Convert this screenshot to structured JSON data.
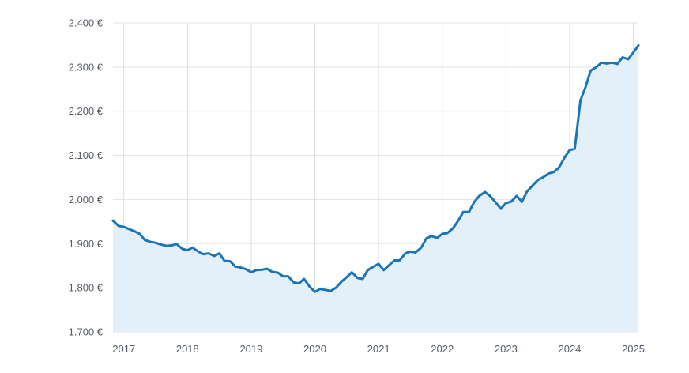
{
  "chart_data": {
    "type": "area",
    "title": "",
    "xlabel": "",
    "ylabel": "",
    "ylim": [
      1700,
      2400
    ],
    "xlim": [
      2016.83,
      2025.08
    ],
    "y_ticks": [
      {
        "value": 1700,
        "label": "1.700 €"
      },
      {
        "value": 1800,
        "label": "1.800 €"
      },
      {
        "value": 1900,
        "label": "1.900 €"
      },
      {
        "value": 2000,
        "label": "2.000 €"
      },
      {
        "value": 2100,
        "label": "2.100 €"
      },
      {
        "value": 2200,
        "label": "2.200 €"
      },
      {
        "value": 2300,
        "label": "2.300 €"
      },
      {
        "value": 2400,
        "label": "2.400 €"
      }
    ],
    "x_ticks": [
      {
        "value": 2017,
        "label": "2017"
      },
      {
        "value": 2018,
        "label": "2018"
      },
      {
        "value": 2019,
        "label": "2019"
      },
      {
        "value": 2020,
        "label": "2020"
      },
      {
        "value": 2021,
        "label": "2021"
      },
      {
        "value": 2022,
        "label": "2022"
      },
      {
        "value": 2023,
        "label": "2023"
      },
      {
        "value": 2024,
        "label": "2024"
      },
      {
        "value": 2025,
        "label": "2025"
      }
    ],
    "grid": true,
    "colors": {
      "line": "#1a74b8",
      "fill": "#e4f0f9",
      "grid": "#e3e3e3",
      "vgrid": "#dadde2",
      "text": "#555b66"
    },
    "series": [
      {
        "x": [
          2016.83,
          2016.92,
          2017.0,
          2017.08,
          2017.17,
          2017.25,
          2017.33,
          2017.42,
          2017.5,
          2017.58,
          2017.67,
          2017.75,
          2017.83,
          2017.92,
          2018.0,
          2018.08,
          2018.17,
          2018.25,
          2018.33,
          2018.42,
          2018.5,
          2018.58,
          2018.67,
          2018.75,
          2018.83,
          2018.92,
          2019.0,
          2019.08,
          2019.17,
          2019.25,
          2019.33,
          2019.42,
          2019.5,
          2019.58,
          2019.67,
          2019.75,
          2019.83,
          2019.92,
          2020.0,
          2020.08,
          2020.17,
          2020.25,
          2020.33,
          2020.42,
          2020.5,
          2020.58,
          2020.67,
          2020.75,
          2020.83,
          2020.92,
          2021.0,
          2021.08,
          2021.17,
          2021.25,
          2021.33,
          2021.42,
          2021.5,
          2021.58,
          2021.67,
          2021.75,
          2021.83,
          2021.92,
          2022.0,
          2022.08,
          2022.17,
          2022.25,
          2022.33,
          2022.42,
          2022.5,
          2022.58,
          2022.67,
          2022.75,
          2022.83,
          2022.92,
          2023.0,
          2023.08,
          2023.17,
          2023.25,
          2023.33,
          2023.42,
          2023.5,
          2023.58,
          2023.67,
          2023.75,
          2023.83,
          2023.92,
          2024.0,
          2024.08,
          2024.17,
          2024.25,
          2024.33,
          2024.42,
          2024.5,
          2024.58,
          2024.67,
          2024.75,
          2024.83,
          2024.92,
          2025.0,
          2025.08
        ],
        "values": [
          1952,
          1940,
          1938,
          1933,
          1928,
          1922,
          1908,
          1904,
          1902,
          1898,
          1895,
          1896,
          1899,
          1888,
          1885,
          1891,
          1882,
          1876,
          1878,
          1872,
          1878,
          1861,
          1860,
          1848,
          1846,
          1842,
          1835,
          1840,
          1841,
          1843,
          1836,
          1834,
          1826,
          1826,
          1812,
          1810,
          1820,
          1802,
          1791,
          1797,
          1795,
          1793,
          1800,
          1814,
          1824,
          1835,
          1822,
          1820,
          1840,
          1848,
          1854,
          1840,
          1852,
          1862,
          1862,
          1878,
          1882,
          1880,
          1891,
          1912,
          1917,
          1913,
          1922,
          1924,
          1935,
          1952,
          1972,
          1972,
          1994,
          2008,
          2017,
          2008,
          1995,
          1979,
          1992,
          1995,
          2008,
          1995,
          2018,
          2032,
          2044,
          2050,
          2059,
          2062,
          2072,
          2095,
          2112,
          2115,
          2225,
          2255,
          2292,
          2300,
          2310,
          2308,
          2310,
          2307,
          2322,
          2318,
          2333,
          2349
        ]
      }
    ]
  }
}
